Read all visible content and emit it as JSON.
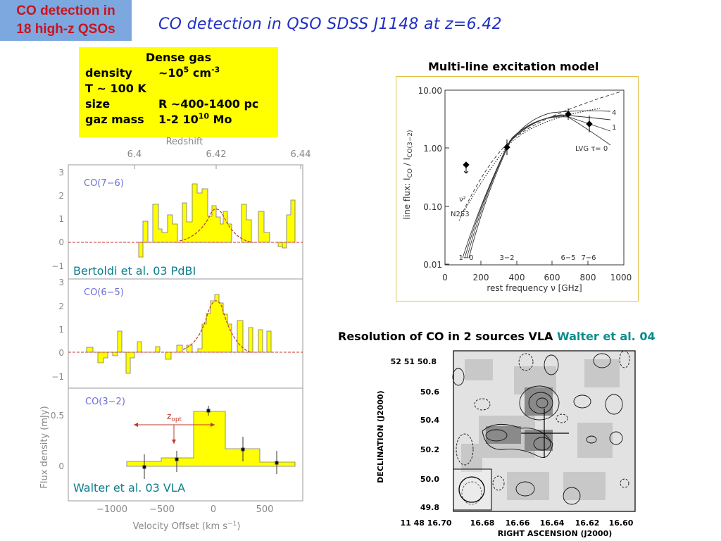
{
  "tag": {
    "line1": "CO detection in",
    "line2": "18 high-z QSOs"
  },
  "title": "CO detection in QSO SDSS J1148 at z=6.42",
  "gas_box": {
    "heading": "Dense gas",
    "rows": [
      {
        "label": "density",
        "value": "~10",
        "sup": "5",
        "unit": " cm",
        "unit_sup": "-3"
      },
      {
        "label": "T ~ 100 K",
        "value": "",
        "sup": "",
        "unit": "",
        "unit_sup": ""
      },
      {
        "label": "size",
        "value": "R ~400-1400 pc",
        "sup": "",
        "unit": "",
        "unit_sup": ""
      },
      {
        "label": "gaz mass",
        "value": "1-2 10",
        "sup": "10",
        "unit": " Mo",
        "unit_sup": ""
      }
    ]
  },
  "spectra": {
    "redshift_label": "Redshift",
    "redshift_ticks": [
      "6.4",
      "6.42",
      "6.44"
    ],
    "panels": [
      {
        "name": "CO(7−6)",
        "yticks": [
          "3",
          "2",
          "1",
          "0",
          "−1"
        ]
      },
      {
        "name": "CO(6−5)",
        "yticks": [
          "3",
          "2",
          "1",
          "0",
          "−1"
        ]
      },
      {
        "name": "CO(3−2)",
        "yticks": [
          "0.5",
          "0"
        ]
      }
    ],
    "ylabel": "Flux density (mJy)",
    "xlabel": "Velocity Offset (km s",
    "xlabel_sup": "−1",
    "xlabel_end": ")",
    "xticks": [
      "−1000",
      "−500",
      "0",
      "500"
    ],
    "zopt_label": "z",
    "zopt_sub": "opt",
    "citation_top": "Bertoldi et al. 03 PdBI",
    "citation_bottom": "Walter et al. 03 VLA"
  },
  "excitation": {
    "label": "Multi-line excitation model",
    "yticks": [
      "10.00",
      "1.00",
      "0.10",
      "0.01"
    ],
    "xticks": [
      "0",
      "200",
      "400",
      "600",
      "800",
      "1000"
    ],
    "ylabel": "line flux:  I",
    "xlabel": "rest frequency ν [GHz]",
    "curve_labels": [
      "4",
      "1",
      "LVG τ= 0",
      "ν²",
      "N253"
    ],
    "line_labels": [
      "1−0",
      "3−2",
      "6−5",
      "7−6"
    ]
  },
  "resolution": {
    "text": "Resolution of CO in 2 sources VLA",
    "citation": "Walter et al. 04"
  },
  "map": {
    "dec_ticks": [
      "52 51 50.8",
      "50.6",
      "50.4",
      "50.2",
      "50.0",
      "49.8"
    ],
    "ra_ticks": [
      "11 48 16.70",
      "16.68",
      "16.66",
      "16.64",
      "16.62",
      "16.60"
    ],
    "ylabel": "DECLINATION (J2000)",
    "xlabel": "RIGHT ASCENSION (J2000)"
  },
  "colors": {
    "tag_bg": "#7da7df",
    "tag_text": "#c8141e",
    "title": "#1f2fc4",
    "highlight": "#ffff00",
    "citation": "#0a8c8c"
  }
}
